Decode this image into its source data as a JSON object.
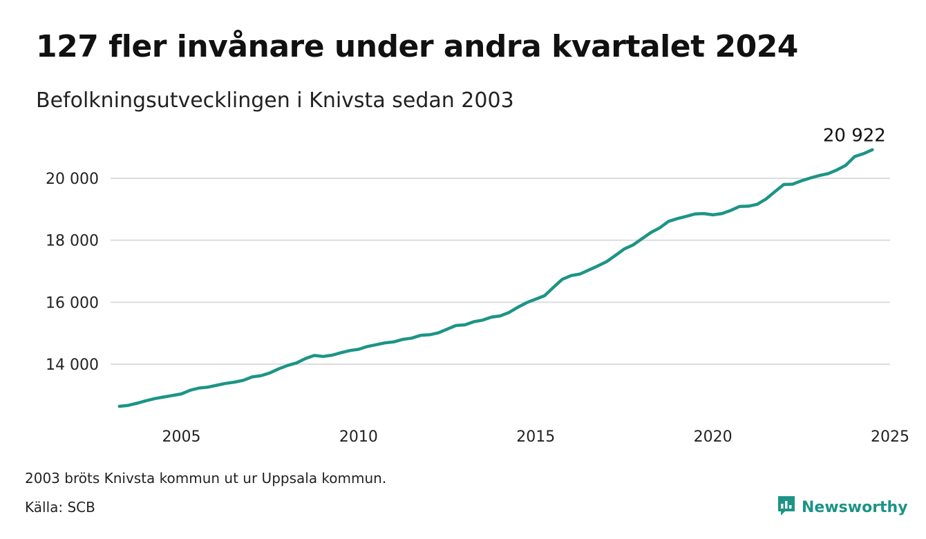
{
  "header": {
    "title": "127 fler invånare under andra kvartalet 2024",
    "subtitle": "Befolkningsutvecklingen i Knivsta sedan 2003"
  },
  "footer": {
    "note": "2003 bröts Knivsta kommun ut ur Uppsala kommun.",
    "source": "Källa: SCB",
    "brand": "Newsworthy"
  },
  "colors": {
    "line": "#1d9486",
    "grid": "#dcdcdc",
    "brand": "#1d9486"
  },
  "icons": {
    "brand_logo": "newsworthy-logo-icon"
  },
  "chart_data": {
    "type": "line",
    "title": "127 fler invånare under andra kvartalet 2024",
    "subtitle": "Befolkningsutvecklingen i Knivsta sedan 2003",
    "xlabel": "",
    "ylabel": "",
    "xlim": [
      2003,
      2025
    ],
    "ylim": [
      12300,
      21000
    ],
    "x_ticks": [
      2005,
      2010,
      2015,
      2020,
      2025
    ],
    "x_tick_labels": [
      "2005",
      "2010",
      "2015",
      "2020",
      "2025"
    ],
    "y_ticks": [
      14000,
      16000,
      18000,
      20000
    ],
    "y_tick_labels": [
      "14 000",
      "16 000",
      "18 000",
      "20 000"
    ],
    "grid": "horizontal",
    "end_label": "20 922",
    "series": [
      {
        "x": [
          2003.25,
          2003.5,
          2003.75,
          2004.0,
          2004.25,
          2004.5,
          2004.75,
          2005.0,
          2005.25,
          2005.5,
          2005.75,
          2006.0,
          2006.25,
          2006.5,
          2006.75,
          2007.0,
          2007.25,
          2007.5,
          2007.75,
          2008.0,
          2008.25,
          2008.5,
          2008.75,
          2009.0,
          2009.25,
          2009.5,
          2009.75,
          2010.0,
          2010.25,
          2010.5,
          2010.75,
          2011.0,
          2011.25,
          2011.5,
          2011.75,
          2012.0,
          2012.25,
          2012.5,
          2012.75,
          2013.0,
          2013.25,
          2013.5,
          2013.75,
          2014.0,
          2014.25,
          2014.5,
          2014.75,
          2015.0,
          2015.25,
          2015.5,
          2015.75,
          2016.0,
          2016.25,
          2016.5,
          2016.75,
          2017.0,
          2017.25,
          2017.5,
          2017.75,
          2018.0,
          2018.25,
          2018.5,
          2018.75,
          2019.0,
          2019.25,
          2019.5,
          2019.75,
          2020.0,
          2020.25,
          2020.5,
          2020.75,
          2021.0,
          2021.25,
          2021.5,
          2021.75,
          2022.0,
          2022.25,
          2022.5,
          2022.75,
          2023.0,
          2023.25,
          2023.5,
          2023.75,
          2024.0,
          2024.25,
          2024.5
        ],
        "values": [
          12640,
          12670,
          12740,
          12820,
          12890,
          12940,
          12990,
          13040,
          13160,
          13230,
          13260,
          13320,
          13380,
          13420,
          13480,
          13590,
          13630,
          13720,
          13850,
          13960,
          14040,
          14180,
          14280,
          14250,
          14290,
          14370,
          14440,
          14480,
          14570,
          14630,
          14690,
          14720,
          14800,
          14840,
          14930,
          14950,
          15010,
          15130,
          15250,
          15270,
          15370,
          15420,
          15520,
          15560,
          15670,
          15840,
          15990,
          16100,
          16210,
          16480,
          16740,
          16860,
          16910,
          17040,
          17170,
          17310,
          17510,
          17720,
          17850,
          18050,
          18250,
          18400,
          18610,
          18700,
          18770,
          18850,
          18860,
          18820,
          18860,
          18960,
          19090,
          19100,
          19160,
          19330,
          19570,
          19800,
          19810,
          19920,
          20010,
          20090,
          20150,
          20270,
          20420,
          20700,
          20795,
          20922
        ]
      }
    ]
  }
}
